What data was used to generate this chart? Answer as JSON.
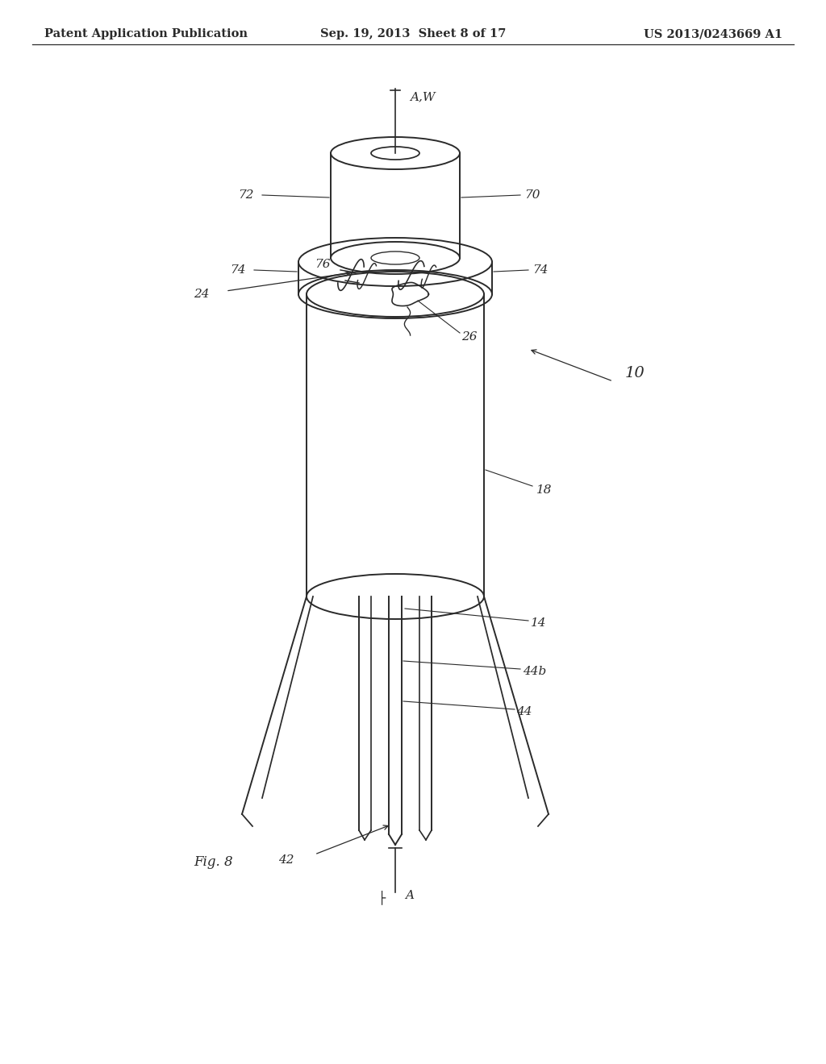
{
  "bg_color": "#ffffff",
  "line_color": "#2a2a2a",
  "header_left": "Patent Application Publication",
  "header_center": "Sep. 19, 2013  Sheet 8 of 17",
  "header_right": "US 2013/0243669 A1",
  "fig_label": "Fig. 8",
  "annotation_fontsize": 11,
  "header_fontsize": 10.5
}
